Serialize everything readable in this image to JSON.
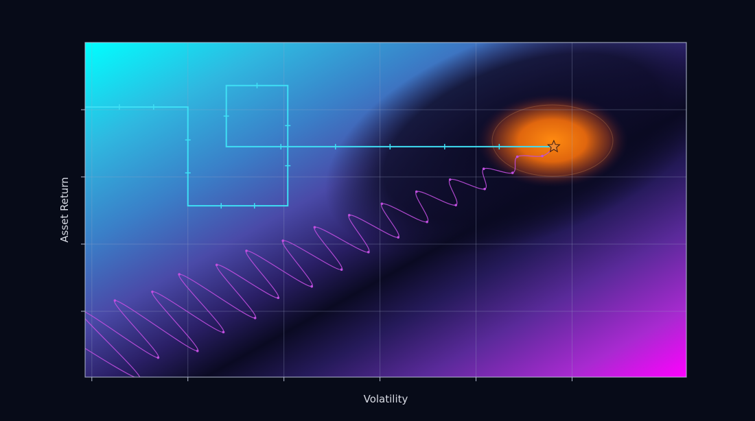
{
  "chart_data": {
    "type": "line",
    "background": "contour",
    "title": "",
    "xlabel": "Volatility",
    "ylabel": "Asset Return",
    "xlim": [
      -0.07,
      6.19
    ],
    "ylim": [
      0.02,
      5.0
    ],
    "xticks": [
      0,
      1,
      2,
      3,
      4,
      5
    ],
    "yticks": [
      1,
      2,
      3,
      4
    ],
    "tick_labels_shown": false,
    "grid": true,
    "colors": {
      "background": "#070b18",
      "contour_low": "#00ffff",
      "contour_valley": "#0a0a22",
      "contour_high": "#ff00ff",
      "optimum_glow": "#ff8a10",
      "path_a": "#3fe0f5",
      "path_b": "#c14fe0",
      "optimum_marker": "#f08a30"
    },
    "optimum": {
      "x": 4.81,
      "y": 3.45,
      "marker": "star"
    },
    "series": [
      {
        "style": "step-path",
        "color": "#3fe0f5",
        "points": [
          [
            -0.07,
            4.04
          ],
          [
            1.0,
            4.04
          ],
          [
            1.0,
            2.57
          ],
          [
            2.04,
            2.57
          ],
          [
            2.04,
            4.36
          ],
          [
            1.4,
            4.36
          ],
          [
            1.4,
            3.45
          ],
          [
            4.81,
            3.45
          ]
        ]
      },
      {
        "style": "noisy-path",
        "color": "#c14fe0",
        "points": [
          [
            -0.41,
            0.75
          ],
          [
            0.5,
            0.0
          ],
          [
            -0.14,
            1.03
          ],
          [
            0.69,
            0.31
          ],
          [
            0.24,
            1.16
          ],
          [
            1.1,
            0.41
          ],
          [
            0.63,
            1.29
          ],
          [
            1.37,
            0.69
          ],
          [
            0.91,
            1.55
          ],
          [
            1.7,
            0.9
          ],
          [
            1.3,
            1.69
          ],
          [
            1.94,
            1.2
          ],
          [
            1.61,
            1.9
          ],
          [
            2.29,
            1.37
          ],
          [
            1.99,
            2.05
          ],
          [
            2.6,
            1.62
          ],
          [
            2.32,
            2.25
          ],
          [
            2.88,
            1.88
          ],
          [
            2.68,
            2.43
          ],
          [
            3.19,
            2.1
          ],
          [
            3.02,
            2.6
          ],
          [
            3.49,
            2.33
          ],
          [
            3.38,
            2.78
          ],
          [
            3.79,
            2.58
          ],
          [
            3.73,
            2.96
          ],
          [
            4.09,
            2.82
          ],
          [
            4.08,
            3.12
          ],
          [
            4.38,
            3.06
          ],
          [
            4.43,
            3.3
          ],
          [
            4.69,
            3.31
          ],
          [
            4.81,
            3.45
          ]
        ]
      }
    ]
  }
}
